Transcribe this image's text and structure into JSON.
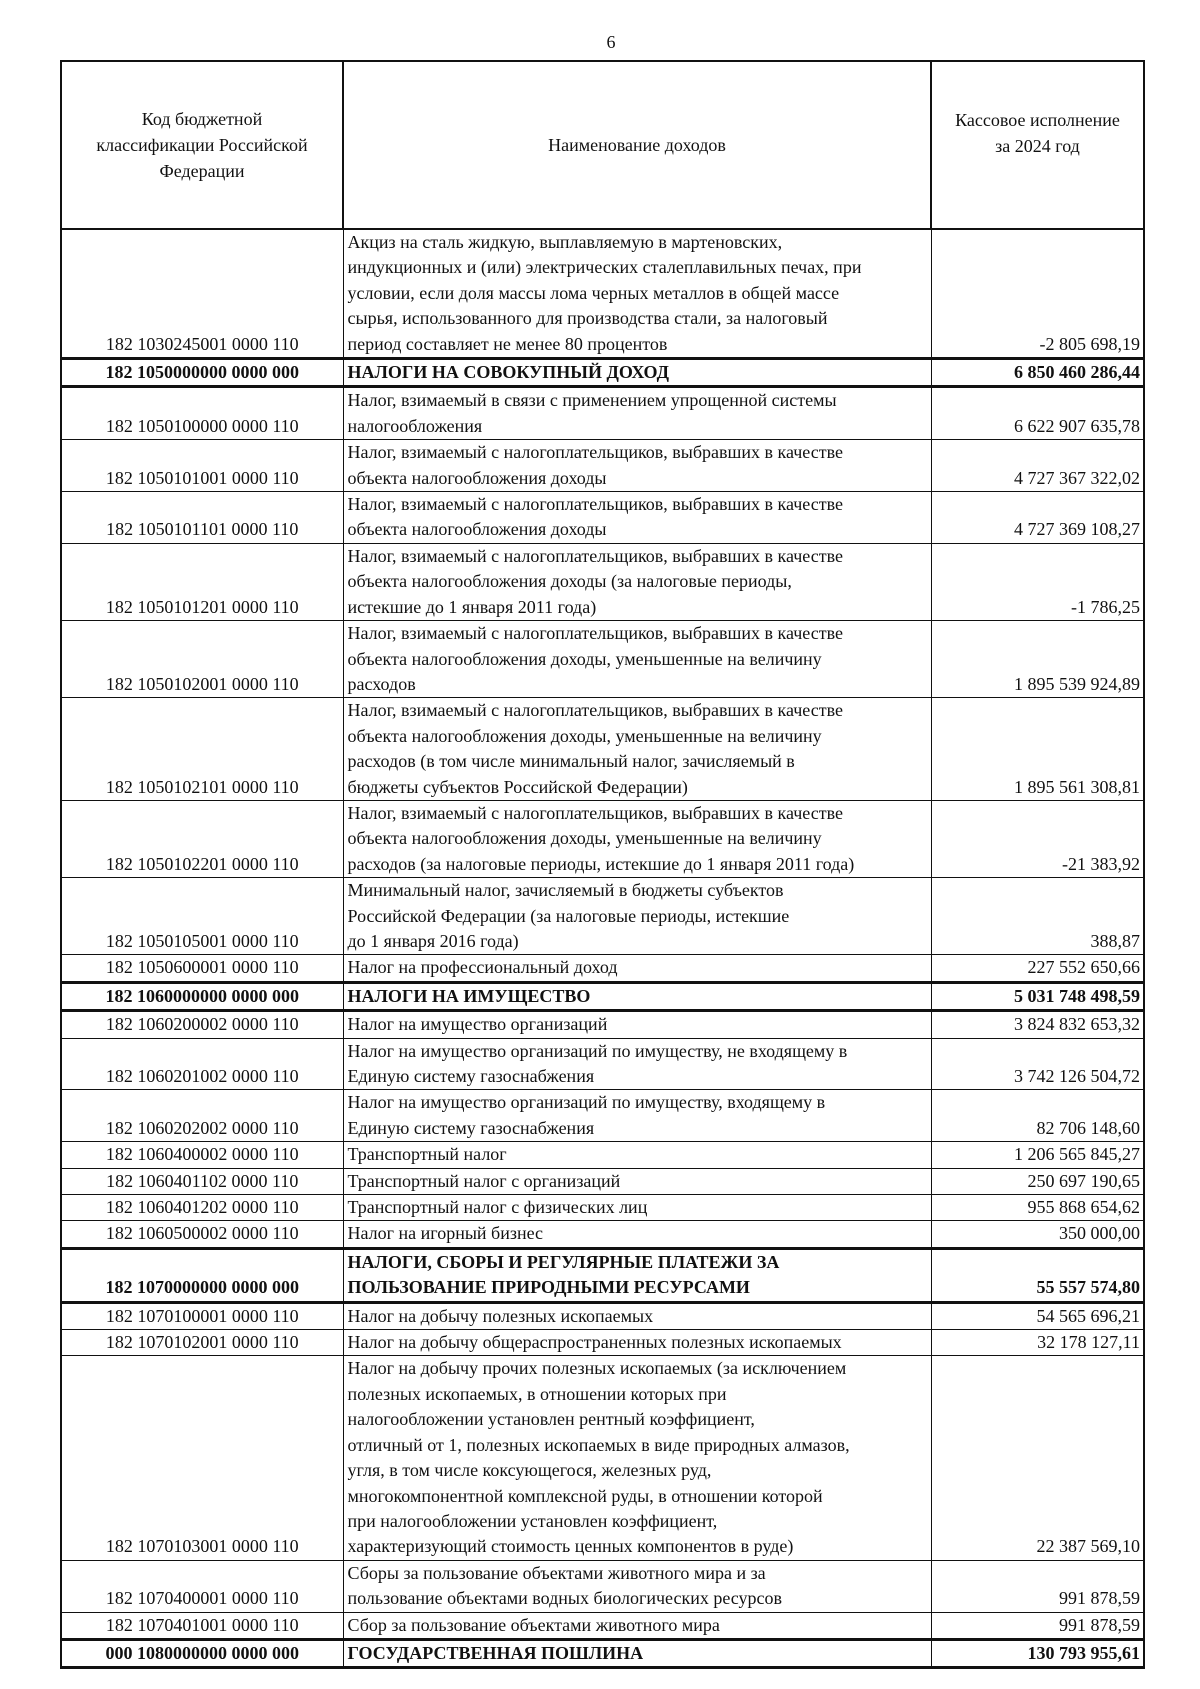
{
  "page_number": "6",
  "table": {
    "headers": [
      "Код бюджетной\nклассификации Российской\nФедерации",
      "Наименование доходов",
      "Кассовое исполнение\nза 2024 год"
    ],
    "rows": [
      {
        "code": "182 1030245001 0000 110",
        "name": "Акциз на сталь жидкую, выплавляемую в мартеновских,\nиндукционных и (или) электрических сталеплавильных печах, при\nусловии, если доля массы лома черных металлов в общей массе\nсырья, использованного для производства стали, за налоговый\nпериод составляет не менее 80 процентов",
        "value": "-2 805 698,19",
        "bold": false
      },
      {
        "code": "182 1050000000 0000 000",
        "name": "НАЛОГИ НА СОВОКУПНЫЙ ДОХОД",
        "value": "6 850 460 286,44",
        "bold": true
      },
      {
        "code": "182 1050100000 0000 110",
        "name": "Налог, взимаемый в связи с применением упрощенной системы\nналогообложения",
        "value": "6 622 907 635,78",
        "bold": false
      },
      {
        "code": "182 1050101001 0000 110",
        "name": "Налог, взимаемый с налогоплательщиков, выбравших в качестве\nобъекта налогообложения доходы",
        "value": "4 727 367 322,02",
        "bold": false
      },
      {
        "code": "182 1050101101 0000 110",
        "name": "Налог, взимаемый с налогоплательщиков, выбравших в качестве\nобъекта налогообложения доходы",
        "value": "4 727 369 108,27",
        "bold": false
      },
      {
        "code": "182 1050101201 0000 110",
        "name": "Налог, взимаемый с налогоплательщиков, выбравших в качестве\nобъекта налогообложения доходы (за налоговые периоды,\nистекшие до 1 января 2011 года)",
        "value": "-1 786,25",
        "bold": false
      },
      {
        "code": "182 1050102001 0000 110",
        "name": "Налог, взимаемый с налогоплательщиков, выбравших в качестве\nобъекта налогообложения доходы, уменьшенные на величину\nрасходов",
        "value": "1 895 539 924,89",
        "bold": false
      },
      {
        "code": "182 1050102101 0000 110",
        "name": "Налог, взимаемый с налогоплательщиков, выбравших в качестве\nобъекта налогообложения доходы, уменьшенные на величину\nрасходов (в том числе минимальный налог, зачисляемый в\nбюджеты субъектов Российской Федерации)",
        "value": "1 895 561 308,81",
        "bold": false
      },
      {
        "code": "182 1050102201 0000 110",
        "name": "Налог, взимаемый с налогоплательщиков, выбравших в качестве\nобъекта налогообложения доходы, уменьшенные на величину\nрасходов (за налоговые периоды, истекшие до 1 января 2011 года)",
        "value": "-21 383,92",
        "bold": false
      },
      {
        "code": "182 1050105001 0000 110",
        "name": "Минимальный налог, зачисляемый в бюджеты субъектов\nРоссийской Федерации (за налоговые периоды, истекшие\nдо 1 января 2016 года)",
        "value": "388,87",
        "bold": false
      },
      {
        "code": "182 1050600001 0000 110",
        "name": "Налог на профессиональный доход",
        "value": "227 552 650,66",
        "bold": false
      },
      {
        "code": "182 1060000000 0000 000",
        "name": "НАЛОГИ НА ИМУЩЕСТВО",
        "value": "5 031 748 498,59",
        "bold": true
      },
      {
        "code": "182 1060200002 0000 110",
        "name": "Налог на имущество организаций",
        "value": "3 824 832 653,32",
        "bold": false
      },
      {
        "code": "182 1060201002 0000 110",
        "name": "Налог на имущество организаций по имуществу, не входящему в\nЕдиную систему газоснабжения",
        "value": "3 742 126 504,72",
        "bold": false
      },
      {
        "code": "182 1060202002 0000 110",
        "name": "Налог на имущество организаций по имуществу, входящему в\nЕдиную систему газоснабжения",
        "value": "82 706 148,60",
        "bold": false
      },
      {
        "code": "182 1060400002 0000 110",
        "name": "Транспортный налог",
        "value": "1 206 565 845,27",
        "bold": false
      },
      {
        "code": "182 1060401102 0000 110",
        "name": "Транспортный налог с организаций",
        "value": "250 697 190,65",
        "bold": false
      },
      {
        "code": "182 1060401202 0000 110",
        "name": "Транспортный налог с физических лиц",
        "value": "955 868 654,62",
        "bold": false
      },
      {
        "code": "182 1060500002 0000 110",
        "name": "Налог на игорный бизнес",
        "value": "350 000,00",
        "bold": false
      },
      {
        "code": "182 1070000000 0000 000",
        "name": "НАЛОГИ, СБОРЫ И РЕГУЛЯРНЫЕ ПЛАТЕЖИ ЗА\nПОЛЬЗОВАНИЕ ПРИРОДНЫМИ РЕСУРСАМИ",
        "value": "55 557 574,80",
        "bold": true
      },
      {
        "code": "182 1070100001 0000 110",
        "name": "Налог на добычу полезных ископаемых",
        "value": "54 565 696,21",
        "bold": false
      },
      {
        "code": "182 1070102001 0000 110",
        "name": "Налог на добычу общераспространенных полезных ископаемых",
        "value": "32 178 127,11",
        "bold": false
      },
      {
        "code": "182 1070103001 0000 110",
        "name": "Налог на добычу прочих полезных ископаемых (за исключением\nполезных ископаемых, в отношении которых при\nналогообложении установлен рентный коэффициент,\nотличный от 1, полезных ископаемых в виде природных алмазов,\nугля, в том числе коксующегося, железных руд,\nмногокомпонентной комплексной руды, в отношении которой\nпри налогообложении установлен коэффициент,\nхарактеризующий стоимость ценных компонентов в руде)",
        "value": "22 387 569,10",
        "bold": false
      },
      {
        "code": "182 1070400001 0000 110",
        "name": "Сборы за пользование объектами животного мира и за\nпользование объектами водных биологических ресурсов",
        "value": "991 878,59",
        "bold": false
      },
      {
        "code": "182 1070401001 0000 110",
        "name": "Сбор за пользование объектами животного мира",
        "value": "991 878,59",
        "bold": false
      },
      {
        "code": "000 1080000000 0000 000",
        "name": "ГОСУДАРСТВЕННАЯ ПОШЛИНА",
        "value": "130 793 955,61",
        "bold": true
      }
    ]
  }
}
